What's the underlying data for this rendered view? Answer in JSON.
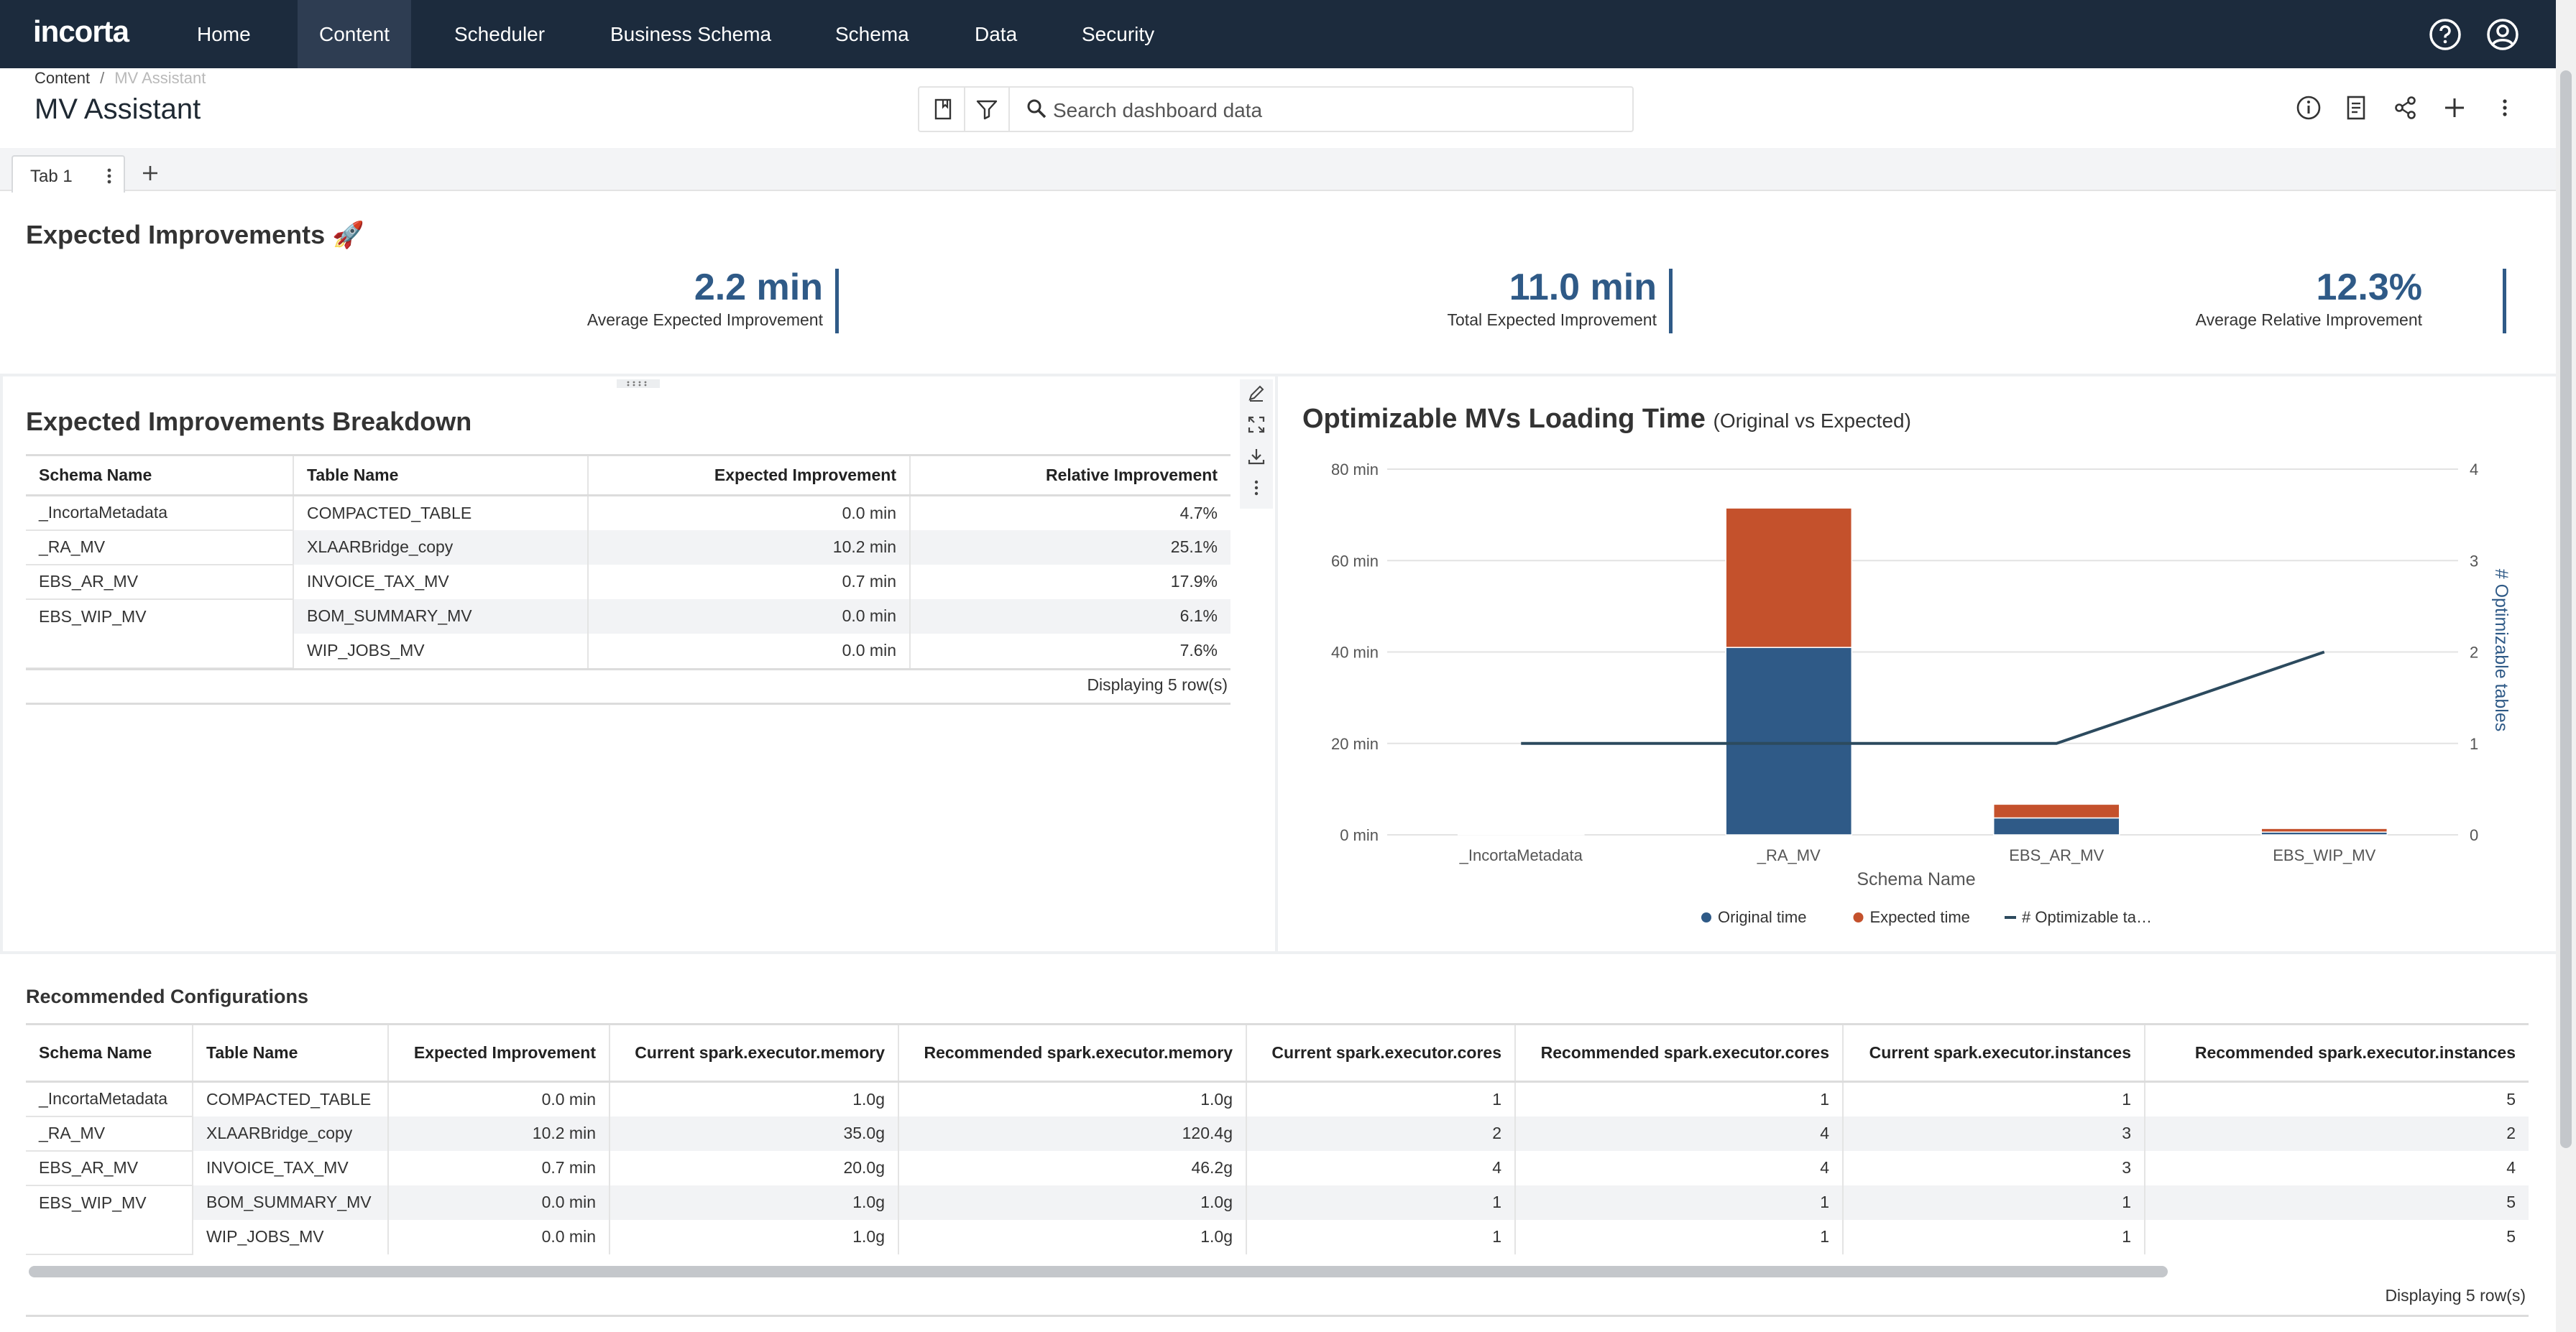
{
  "app": {
    "logo_text": "incorta"
  },
  "nav": {
    "items": [
      {
        "label": "Home",
        "active": false
      },
      {
        "label": "Content",
        "active": true
      },
      {
        "label": "Scheduler",
        "active": false
      },
      {
        "label": "Business Schema",
        "active": false
      },
      {
        "label": "Schema",
        "active": false
      },
      {
        "label": "Data",
        "active": false
      },
      {
        "label": "Security",
        "active": false
      }
    ],
    "icons": [
      "help-icon",
      "user-profile-icon"
    ]
  },
  "breadcrumb": {
    "parent": "Content",
    "separator": "/",
    "current": "MV Assistant"
  },
  "page": {
    "title": "MV Assistant"
  },
  "toolbar": {
    "search_placeholder": "Search dashboard data",
    "left_icons": [
      "bookmark-icon",
      "filter-icon",
      "search-icon"
    ],
    "right_icons": [
      "info-icon",
      "bookmark-list-icon",
      "share-icon",
      "add-icon",
      "more-vertical-icon"
    ]
  },
  "tabs": {
    "items": [
      {
        "label": "Tab 1",
        "active": true
      }
    ],
    "add_icon": "plus-icon"
  },
  "expected_improvements": {
    "title": "Expected Improvements 🚀",
    "kpis": [
      {
        "value": "2.2 min",
        "label": "Average Expected Improvement"
      },
      {
        "value": "11.0 min",
        "label": "Total Expected Improvement"
      },
      {
        "value": "12.3%",
        "label": "Average Relative Improvement"
      }
    ]
  },
  "breakdown": {
    "title": "Expected Improvements Breakdown",
    "columns": [
      "Schema Name",
      "Table Name",
      "Expected Improvement",
      "Relative Improvement"
    ],
    "schemas": [
      "_IncortaMetadata",
      "_RA_MV",
      "EBS_AR_MV",
      "EBS_WIP_MV"
    ],
    "rows": [
      [
        "COMPACTED_TABLE",
        "0.0 min",
        "4.7%"
      ],
      [
        "XLAARBridge_copy",
        "10.2 min",
        "25.1%"
      ],
      [
        "INVOICE_TAX_MV",
        "0.7 min",
        "17.9%"
      ],
      [
        "BOM_SUMMARY_MV",
        "0.0 min",
        "6.1%"
      ],
      [
        "WIP_JOBS_MV",
        "0.0 min",
        "7.6%"
      ]
    ],
    "footer": "Displaying 5 row(s)",
    "side_icons": [
      "edit-icon",
      "expand-icon",
      "download-icon",
      "more-vertical-icon"
    ]
  },
  "chart_header": {
    "title": "Optimizable MVs Loading Time",
    "subtitle": "(Original vs Expected)"
  },
  "chart_data": {
    "type": "bar",
    "stacked": true,
    "categories": [
      "_IncortaMetadata",
      "_RA_MV",
      "EBS_AR_MV",
      "EBS_WIP_MV"
    ],
    "series": [
      {
        "name": "Original time",
        "type": "bar",
        "color": "#2f5a87",
        "values": [
          0.03,
          41.0,
          3.7,
          0.6
        ]
      },
      {
        "name": "Expected time",
        "type": "bar",
        "color": "#c4512c",
        "values": [
          0.03,
          30.5,
          3.0,
          0.8
        ]
      },
      {
        "name": "# Optimizable tables",
        "legend_label": "# Optimizable ta…",
        "type": "line",
        "axis": "right",
        "color": "#2c4a5e",
        "values": [
          1,
          1,
          1,
          2
        ]
      }
    ],
    "xlabel": "Schema Name",
    "ylabel": "",
    "y2label": "# Optimizable tables",
    "ylim": [
      0,
      80
    ],
    "y2lim": [
      0,
      4
    ],
    "yticks": [
      "0 min",
      "20 min",
      "40 min",
      "60 min",
      "80 min"
    ],
    "y2ticks": [
      "0",
      "1",
      "2",
      "3",
      "4"
    ],
    "grid": true,
    "legend_position": "bottom"
  },
  "recommended": {
    "title": "Recommended Configurations",
    "columns": [
      "Schema Name",
      "Table Name",
      "Expected Improvement",
      "Current spark.executor.memory",
      "Recommended spark.executor.memory",
      "Current spark.executor.cores",
      "Recommended spark.executor.cores",
      "Current spark.executor.instances",
      "Recommended spark.executor.instances"
    ],
    "schemas": [
      "_IncortaMetadata",
      "_RA_MV",
      "EBS_AR_MV",
      "EBS_WIP_MV"
    ],
    "rows": [
      [
        "COMPACTED_TABLE",
        "0.0 min",
        "1.0g",
        "1.0g",
        "1",
        "1",
        "1",
        "5"
      ],
      [
        "XLAARBridge_copy",
        "10.2 min",
        "35.0g",
        "120.4g",
        "2",
        "4",
        "3",
        "2"
      ],
      [
        "INVOICE_TAX_MV",
        "0.7 min",
        "20.0g",
        "46.2g",
        "4",
        "4",
        "3",
        "4"
      ],
      [
        "BOM_SUMMARY_MV",
        "0.0 min",
        "1.0g",
        "1.0g",
        "1",
        "1",
        "1",
        "5"
      ],
      [
        "WIP_JOBS_MV",
        "0.0 min",
        "1.0g",
        "1.0g",
        "1",
        "1",
        "1",
        "5"
      ]
    ],
    "footer": "Displaying 5 row(s)"
  }
}
